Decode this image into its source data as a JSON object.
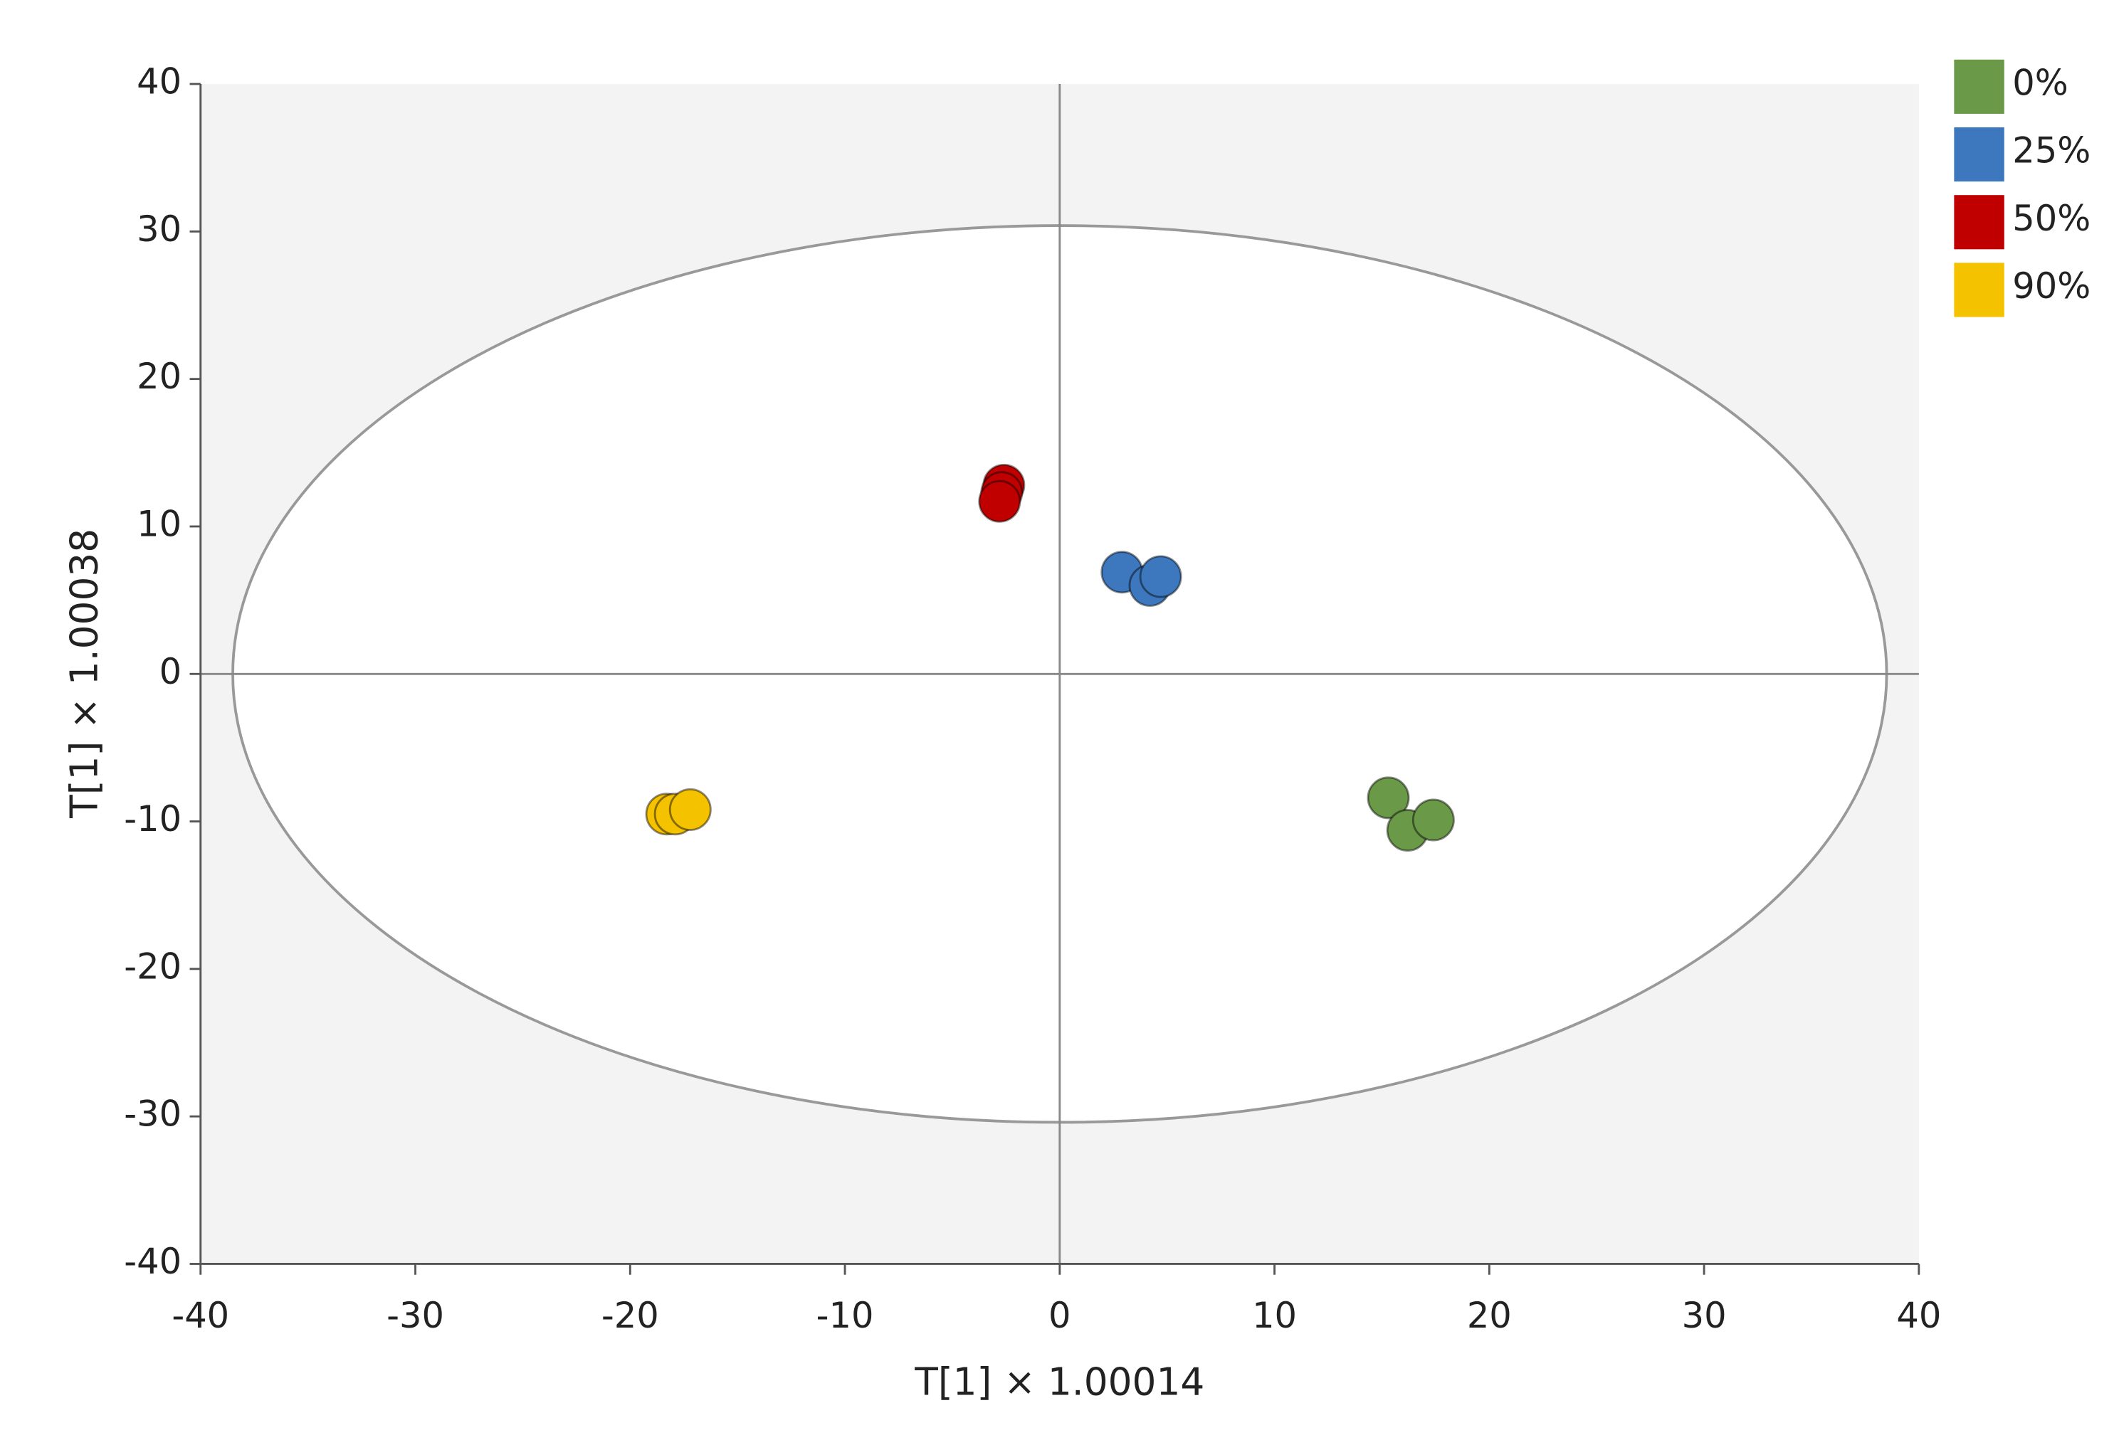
{
  "chart_data": {
    "type": "scatter",
    "x_label": "T[1] × 1.00014",
    "y_label": "T[1] × 1.00038",
    "xlim": [
      -40,
      40
    ],
    "ylim": [
      -40,
      40
    ],
    "xticks": [
      -40,
      -30,
      -20,
      -10,
      0,
      10,
      20,
      30,
      40
    ],
    "yticks": [
      -40,
      -30,
      -20,
      -10,
      0,
      10,
      20,
      30,
      40
    ],
    "ellipse_radii": [
      38.5,
      30.4
    ],
    "legend_position": "upper right outside",
    "series": [
      {
        "name": "0%",
        "color": "#6a9a48",
        "x": [
          15.3,
          16.2,
          17.4
        ],
        "values": [
          -8.4,
          -10.6,
          -9.9
        ]
      },
      {
        "name": "25%",
        "color": "#3d78bf",
        "x": [
          2.9,
          4.2,
          4.7
        ],
        "values": [
          6.9,
          6.0,
          6.6
        ]
      },
      {
        "name": "50%",
        "color": "#c00000",
        "x": [
          -2.6,
          -2.7,
          -2.8
        ],
        "values": [
          12.8,
          12.3,
          11.7
        ]
      },
      {
        "name": "90%",
        "color": "#f5c200",
        "x": [
          -18.3,
          -17.9,
          -17.2
        ],
        "values": [
          -9.5,
          -9.5,
          -9.2
        ]
      }
    ]
  }
}
